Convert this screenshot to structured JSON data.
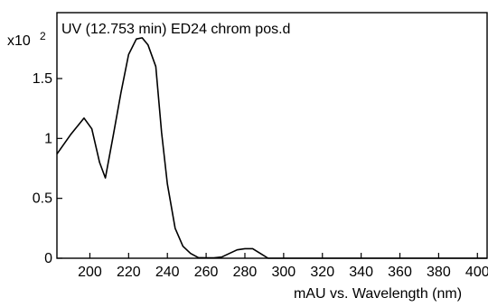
{
  "chart_data": {
    "type": "line",
    "title": "UV (12.753 min) ED24 chrom pos.d",
    "xlabel": "mAU vs. Wavelength (nm)",
    "ylabel": "",
    "y_multiplier_label": "x10",
    "y_multiplier_exponent": "2",
    "xlim": [
      183,
      405
    ],
    "ylim": [
      0,
      2.05
    ],
    "x_ticks": [
      200,
      220,
      240,
      260,
      280,
      300,
      320,
      340,
      360,
      380,
      400
    ],
    "y_ticks": [
      {
        "value": 0,
        "label": "0"
      },
      {
        "value": 0.5,
        "label": "0.5"
      },
      {
        "value": 1,
        "label": "1"
      },
      {
        "value": 1.5,
        "label": "1.5"
      }
    ],
    "grid": false,
    "series": [
      {
        "color": "#000000",
        "x": [
          183,
          190,
          197,
          201,
          205,
          208,
          212,
          216,
          220,
          224,
          227,
          230,
          234,
          237,
          240,
          244,
          248,
          252,
          256,
          260,
          264,
          268,
          272,
          276,
          280,
          284,
          288,
          292,
          300,
          320,
          340,
          360,
          380,
          400,
          405
        ],
        "y": [
          0.87,
          1.03,
          1.17,
          1.08,
          0.8,
          0.67,
          1.02,
          1.38,
          1.7,
          1.83,
          1.84,
          1.78,
          1.6,
          1.05,
          0.62,
          0.25,
          0.1,
          0.04,
          0.005,
          0.004,
          0.004,
          0.01,
          0.04,
          0.07,
          0.08,
          0.08,
          0.04,
          0.0,
          0.0,
          0.0,
          0.0,
          0.0,
          0.0,
          0.0,
          0.0
        ]
      }
    ]
  }
}
